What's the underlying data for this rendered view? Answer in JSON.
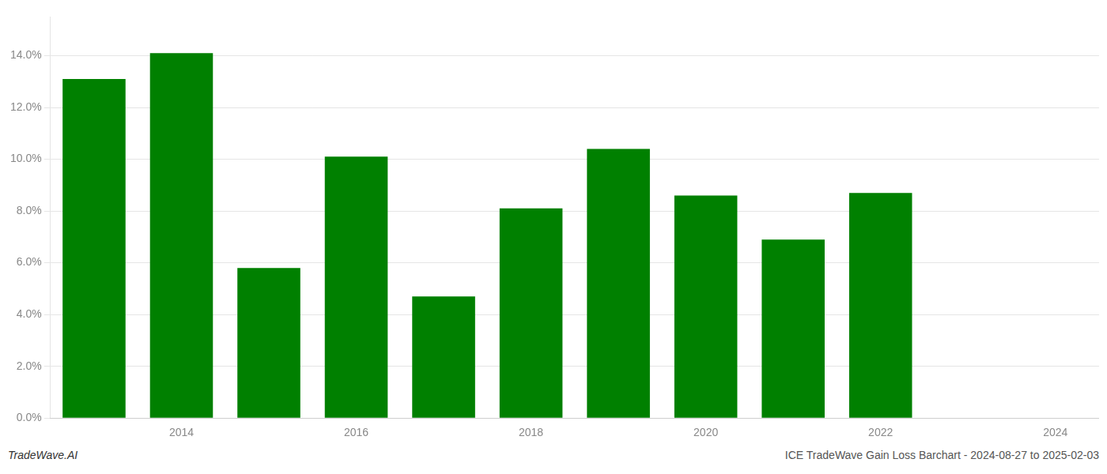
{
  "chart_data": {
    "type": "bar",
    "categories": [
      null,
      "2014",
      null,
      "2016",
      null,
      "2018",
      null,
      "2020",
      null,
      "2022",
      null,
      "2024"
    ],
    "values": [
      0.131,
      0.141,
      0.058,
      0.101,
      0.047,
      0.081,
      0.104,
      0.086,
      0.069,
      0.087,
      null,
      null
    ],
    "color": "#008000",
    "ylim": [
      0,
      0.155
    ],
    "yticks": [
      {
        "value": 0.0,
        "label": "0.0%"
      },
      {
        "value": 0.02,
        "label": "2.0%"
      },
      {
        "value": 0.04,
        "label": "4.0%"
      },
      {
        "value": 0.06,
        "label": "6.0%"
      },
      {
        "value": 0.08,
        "label": "8.0%"
      },
      {
        "value": 0.1,
        "label": "10.0%"
      },
      {
        "value": 0.12,
        "label": "12.0%"
      },
      {
        "value": 0.14,
        "label": "14.0%"
      }
    ],
    "grid": true,
    "annotations": [
      "TradeWave.AI",
      "ICE TradeWave Gain Loss Barchart - 2024-08-27 to 2025-02-03"
    ]
  }
}
